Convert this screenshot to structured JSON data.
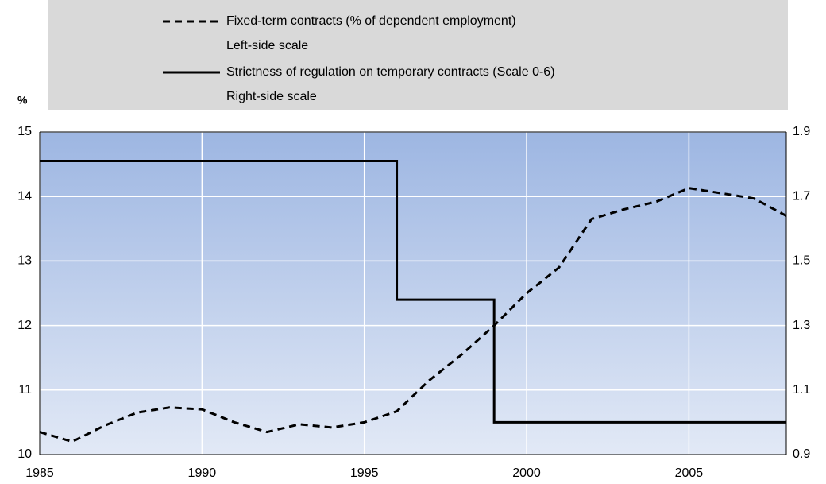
{
  "chart_data": {
    "type": "line",
    "ylabel": "%",
    "xlim": [
      1985,
      2008
    ],
    "xticks": [
      1985,
      1990,
      1995,
      2000,
      2005
    ],
    "ylim": [
      10,
      15
    ],
    "yticks": [
      10,
      11,
      12,
      13,
      14,
      15
    ],
    "y2lim": [
      0.9,
      1.9
    ],
    "y2ticks": [
      0.9,
      1.1,
      1.3,
      1.5,
      1.7,
      1.9
    ],
    "grid": true,
    "series": [
      {
        "name": "Fixed-term contracts (% of dependent employment)",
        "note": "Left-side scale",
        "color": "#000000",
        "dash": true,
        "x": [
          1985,
          1986,
          1987,
          1988,
          1989,
          1990,
          1991,
          1992,
          1993,
          1994,
          1995,
          1996,
          1997,
          1998,
          1999,
          2000,
          2001,
          2002,
          2003,
          2004,
          2005,
          2006,
          2007,
          2008
        ],
        "values": [
          10.35,
          10.2,
          10.45,
          10.65,
          10.73,
          10.7,
          10.5,
          10.35,
          10.47,
          10.42,
          10.5,
          10.67,
          11.15,
          11.55,
          12.0,
          12.5,
          12.9,
          13.65,
          13.8,
          13.92,
          14.13,
          14.05,
          13.97,
          13.7
        ]
      },
      {
        "name": "Strictness of regulation on temporary contracts (Scale 0-6)",
        "note": "Right-side scale",
        "color": "#000000",
        "dash": false,
        "axis": "y2",
        "x": [
          1985,
          1996,
          1996,
          1999,
          1999,
          2008
        ],
        "values": [
          1.81,
          1.81,
          1.38,
          1.38,
          1.0,
          1.0
        ]
      }
    ]
  }
}
